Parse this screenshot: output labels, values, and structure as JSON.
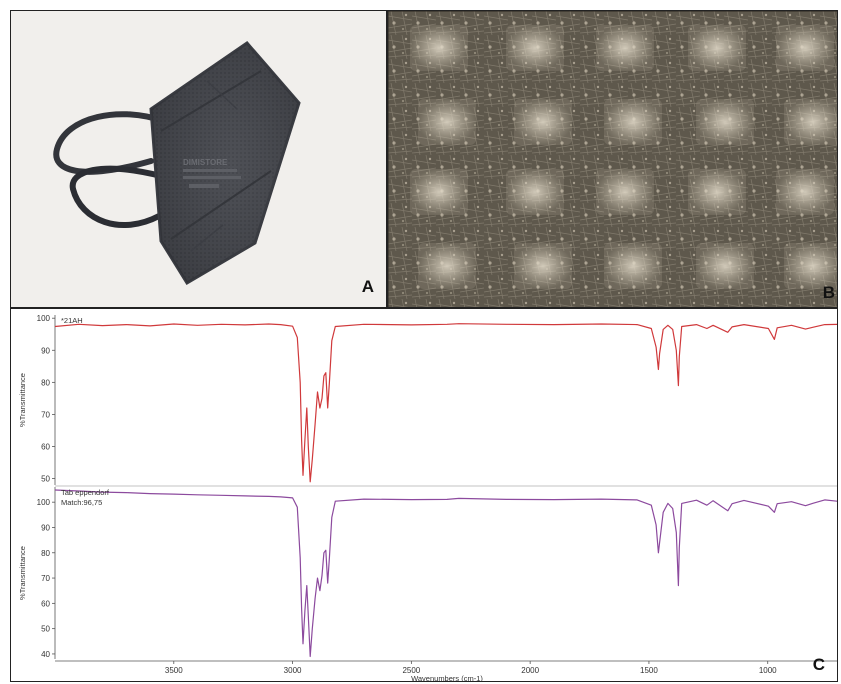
{
  "panels": {
    "a_letter": "A",
    "b_letter": "B",
    "c_letter": "C"
  },
  "photo_a": {
    "mask_color": "#4a4c52",
    "background": "#f1efec",
    "imprint_lines": [
      "DIMISTORE",
      "",
      "",
      ""
    ]
  },
  "photo_b": {
    "background": "#6d6657"
  },
  "chart_data": {
    "type": "line",
    "x_label": "Wavenumbers (cm-1)",
    "x_ticks": [
      3500,
      3000,
      2500,
      2000,
      1500,
      1000
    ],
    "xlim": [
      4000,
      700
    ],
    "series": [
      {
        "name": "*21AH",
        "annotation_lines": [
          "*21AH"
        ],
        "color": "#d0393b",
        "y_label": "%Transmittance",
        "y_ticks": [
          100,
          90,
          80,
          70,
          60,
          50
        ],
        "ylim": [
          48,
          101
        ],
        "points": [
          [
            4000,
            97.4
          ],
          [
            3900,
            98.1
          ],
          [
            3800,
            97.7
          ],
          [
            3700,
            98.0
          ],
          [
            3600,
            97.6
          ],
          [
            3500,
            98.2
          ],
          [
            3400,
            97.8
          ],
          [
            3300,
            98.1
          ],
          [
            3200,
            97.9
          ],
          [
            3100,
            98.2
          ],
          [
            3050,
            98.0
          ],
          [
            3000,
            97.5
          ],
          [
            2980,
            94
          ],
          [
            2968,
            80
          ],
          [
            2962,
            62
          ],
          [
            2956,
            51
          ],
          [
            2948,
            62
          ],
          [
            2940,
            72
          ],
          [
            2934,
            60
          ],
          [
            2926,
            49
          ],
          [
            2917,
            56
          ],
          [
            2905,
            67
          ],
          [
            2895,
            77
          ],
          [
            2885,
            72
          ],
          [
            2876,
            75
          ],
          [
            2868,
            82
          ],
          [
            2860,
            83
          ],
          [
            2852,
            72
          ],
          [
            2845,
            80
          ],
          [
            2835,
            93
          ],
          [
            2820,
            97.4
          ],
          [
            2700,
            98.1
          ],
          [
            2500,
            97.9
          ],
          [
            2350,
            98.1
          ],
          [
            2300,
            98.3
          ],
          [
            2100,
            98.1
          ],
          [
            1900,
            98.0
          ],
          [
            1700,
            98.2
          ],
          [
            1550,
            98.0
          ],
          [
            1490,
            96.8
          ],
          [
            1470,
            91
          ],
          [
            1460,
            84
          ],
          [
            1455,
            89
          ],
          [
            1440,
            96.5
          ],
          [
            1420,
            97.8
          ],
          [
            1400,
            96.5
          ],
          [
            1385,
            90
          ],
          [
            1376,
            79
          ],
          [
            1372,
            88
          ],
          [
            1362,
            97.4
          ],
          [
            1300,
            98.0
          ],
          [
            1256,
            96.8
          ],
          [
            1230,
            97.8
          ],
          [
            1168,
            95.6
          ],
          [
            1150,
            97.3
          ],
          [
            1100,
            98.0
          ],
          [
            997,
            96.8
          ],
          [
            972,
            93.4
          ],
          [
            960,
            97.0
          ],
          [
            900,
            97.8
          ],
          [
            841,
            96.6
          ],
          [
            808,
            97.2
          ],
          [
            760,
            98.0
          ],
          [
            700,
            98.1
          ]
        ]
      },
      {
        "name": "Tab eppendorf",
        "annotation_lines": [
          "Tab eppendorf",
          "Match:96,75"
        ],
        "color": "#8c4a9e",
        "y_label": "%Transmittance",
        "y_ticks": [
          100,
          90,
          80,
          70,
          60,
          50,
          40
        ],
        "ylim": [
          38,
          106
        ],
        "points": [
          [
            4000,
            104.8
          ],
          [
            3900,
            104.4
          ],
          [
            3800,
            104.0
          ],
          [
            3700,
            103.8
          ],
          [
            3600,
            103.4
          ],
          [
            3500,
            103.2
          ],
          [
            3400,
            102.9
          ],
          [
            3300,
            102.7
          ],
          [
            3200,
            102.5
          ],
          [
            3100,
            102.3
          ],
          [
            3050,
            102.1
          ],
          [
            3000,
            101.7
          ],
          [
            2980,
            98
          ],
          [
            2968,
            78
          ],
          [
            2962,
            58
          ],
          [
            2956,
            44
          ],
          [
            2948,
            57
          ],
          [
            2940,
            67
          ],
          [
            2934,
            55
          ],
          [
            2926,
            39
          ],
          [
            2917,
            50
          ],
          [
            2905,
            62
          ],
          [
            2895,
            70
          ],
          [
            2885,
            65
          ],
          [
            2876,
            71
          ],
          [
            2868,
            80
          ],
          [
            2860,
            81
          ],
          [
            2852,
            68
          ],
          [
            2845,
            78
          ],
          [
            2835,
            94
          ],
          [
            2820,
            100.4
          ],
          [
            2700,
            101.2
          ],
          [
            2500,
            101.0
          ],
          [
            2350,
            101.1
          ],
          [
            2300,
            101.5
          ],
          [
            2100,
            101.1
          ],
          [
            1900,
            101.0
          ],
          [
            1700,
            101.2
          ],
          [
            1550,
            100.9
          ],
          [
            1490,
            98.8
          ],
          [
            1470,
            91
          ],
          [
            1460,
            80
          ],
          [
            1455,
            84
          ],
          [
            1440,
            96
          ],
          [
            1420,
            99.5
          ],
          [
            1400,
            97.5
          ],
          [
            1385,
            88
          ],
          [
            1376,
            67
          ],
          [
            1372,
            82
          ],
          [
            1362,
            99.5
          ],
          [
            1300,
            100.8
          ],
          [
            1256,
            98.8
          ],
          [
            1230,
            100.6
          ],
          [
            1168,
            96.6
          ],
          [
            1150,
            99.4
          ],
          [
            1100,
            100.7
          ],
          [
            997,
            98.4
          ],
          [
            972,
            96.0
          ],
          [
            960,
            99.4
          ],
          [
            900,
            100.2
          ],
          [
            841,
            98.6
          ],
          [
            808,
            99.6
          ],
          [
            760,
            100.9
          ],
          [
            700,
            100.3
          ]
        ]
      }
    ]
  }
}
